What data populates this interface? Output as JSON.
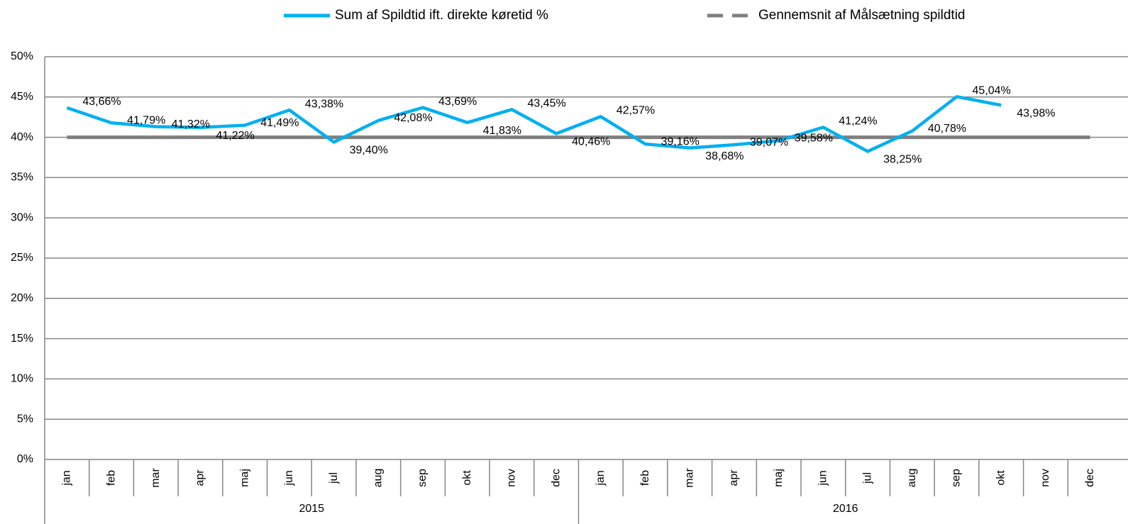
{
  "chart_data": {
    "type": "line",
    "years": [
      "2015",
      "2016"
    ],
    "categories": [
      "jan",
      "feb",
      "mar",
      "apr",
      "maj",
      "jun",
      "jul",
      "aug",
      "sep",
      "okt",
      "nov",
      "dec",
      "jan",
      "feb",
      "mar",
      "apr",
      "maj",
      "jun",
      "jul",
      "aug",
      "sep",
      "okt",
      "nov",
      "dec"
    ],
    "series": [
      {
        "name": "Sum af Spildtid ift. direkte køretid %",
        "color": "#00b0f0",
        "dashed": false,
        "values": [
          43.66,
          41.79,
          41.32,
          41.22,
          41.49,
          43.38,
          39.4,
          42.08,
          43.69,
          41.83,
          43.45,
          40.46,
          42.57,
          39.16,
          38.68,
          39.07,
          39.58,
          41.24,
          38.25,
          40.78,
          45.04,
          43.98,
          null,
          null
        ],
        "value_labels": [
          "43,66%",
          "41,79%",
          "41,32%",
          "41,22%",
          "41,49%",
          "43,38%",
          "39,40%",
          "42,08%",
          "43,69%",
          "41,83%",
          "43,45%",
          "40,46%",
          "42,57%",
          "39,16%",
          "38,68%",
          "39,07%",
          "39,58%",
          "41,24%",
          "38,25%",
          "40,78%",
          "45,04%",
          "43,98%",
          null,
          null
        ]
      },
      {
        "name": "Gennemsnit af Målsætning spildtid",
        "color": "#808080",
        "dashed": true,
        "values": [
          40,
          40,
          40,
          40,
          40,
          40,
          40,
          40,
          40,
          40,
          40,
          40,
          40,
          40,
          40,
          40,
          40,
          40,
          40,
          40,
          40,
          40,
          40,
          40
        ]
      }
    ],
    "ylim": [
      0,
      50
    ],
    "yticks": [
      {
        "value": 0,
        "label": "0%"
      },
      {
        "value": 5,
        "label": "5%"
      },
      {
        "value": 10,
        "label": "10%"
      },
      {
        "value": 15,
        "label": "15%"
      },
      {
        "value": 20,
        "label": "20%"
      },
      {
        "value": 25,
        "label": "25%"
      },
      {
        "value": 30,
        "label": "30%"
      },
      {
        "value": 35,
        "label": "35%"
      },
      {
        "value": 40,
        "label": "40%"
      },
      {
        "value": 45,
        "label": "45%"
      },
      {
        "value": 50,
        "label": "50%"
      }
    ],
    "grid": true
  }
}
